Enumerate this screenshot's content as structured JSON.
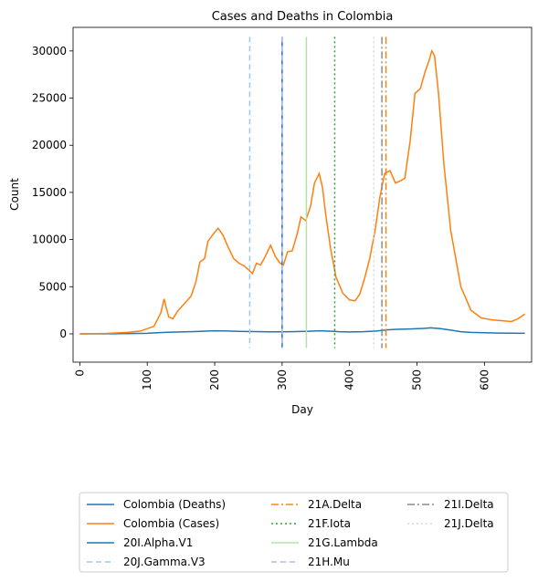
{
  "chart_data": {
    "type": "line",
    "title": "Cases and Deaths in Colombia",
    "xlabel": "Day",
    "ylabel": "Count",
    "xlim": [
      -10,
      670
    ],
    "ylim": [
      -3000,
      32500
    ],
    "xticks": [
      0,
      100,
      200,
      300,
      400,
      500,
      600
    ],
    "yticks": [
      0,
      5000,
      10000,
      15000,
      20000,
      25000,
      30000
    ],
    "grid": false,
    "legend_position": "bottom",
    "series": [
      {
        "name": "Colombia (Deaths)",
        "color": "#1f77b4",
        "x": [
          0,
          60,
          100,
          115,
          130,
          150,
          170,
          190,
          200,
          215,
          230,
          245,
          260,
          280,
          300,
          320,
          340,
          355,
          370,
          385,
          400,
          420,
          440,
          455,
          470,
          490,
          510,
          520,
          535,
          550,
          565,
          580,
          600,
          620,
          640,
          660
        ],
        "y": [
          0,
          20,
          60,
          110,
          170,
          200,
          240,
          300,
          330,
          320,
          280,
          250,
          240,
          210,
          220,
          240,
          280,
          330,
          290,
          230,
          200,
          230,
          300,
          420,
          480,
          520,
          580,
          640,
          560,
          400,
          230,
          150,
          110,
          90,
          70,
          60
        ]
      },
      {
        "name": "Colombia (Cases)",
        "color": "#ff7f0e",
        "x": [
          0,
          40,
          70,
          90,
          110,
          120,
          125,
          128,
          132,
          138,
          145,
          155,
          165,
          172,
          178,
          185,
          190,
          197,
          205,
          212,
          220,
          228,
          236,
          244,
          250,
          256,
          262,
          268,
          275,
          283,
          290,
          297,
          302,
          308,
          315,
          322,
          328,
          335,
          342,
          348,
          355,
          360,
          365,
          372,
          380,
          390,
          400,
          408,
          415,
          422,
          430,
          438,
          445,
          452,
          460,
          468,
          475,
          482,
          490,
          497,
          505,
          512,
          518,
          522,
          526,
          532,
          540,
          550,
          565,
          580,
          595,
          610,
          625,
          640,
          650,
          660
        ],
        "y": [
          0,
          50,
          150,
          300,
          800,
          2200,
          3700,
          2800,
          1800,
          1600,
          2400,
          3200,
          4000,
          5500,
          7600,
          8000,
          9800,
          10500,
          11200,
          10500,
          9200,
          8000,
          7500,
          7200,
          6800,
          6400,
          7500,
          7300,
          8200,
          9400,
          8200,
          7500,
          7300,
          8700,
          8800,
          10500,
          12400,
          12000,
          13500,
          16000,
          17000,
          15500,
          12500,
          9000,
          6000,
          4300,
          3600,
          3500,
          4200,
          5800,
          8000,
          11000,
          14500,
          17000,
          17300,
          16000,
          16200,
          16500,
          20500,
          25500,
          26000,
          27800,
          29000,
          30000,
          29500,
          25500,
          18000,
          11000,
          5000,
          2500,
          1700,
          1500,
          1400,
          1300,
          1600,
          2100
        ]
      }
    ],
    "vlines": [
      {
        "name": "20I.Alpha.V1",
        "x": 300,
        "color": "#1f77b4",
        "style": "solid"
      },
      {
        "name": "20J.Gamma.V3",
        "x": 252,
        "color": "#9ecae1",
        "style": "dashed"
      },
      {
        "name": "21A.Delta",
        "x": 454,
        "color": "#f58518",
        "style": "dashdot"
      },
      {
        "name": "21F.Iota",
        "x": 378,
        "color": "#2ca02c",
        "style": "dotted"
      },
      {
        "name": "21G.Lambda",
        "x": 336,
        "color": "#b5e0ae",
        "style": "solid"
      },
      {
        "name": "21H.Mu",
        "x": 300,
        "color": "#bcb8da",
        "style": "dashed"
      },
      {
        "name": "21I.Delta",
        "x": 448,
        "color": "#8c8c8c",
        "style": "dashdot"
      },
      {
        "name": "21J.Delta",
        "x": 436,
        "color": "#d9d9d9",
        "style": "dotted"
      }
    ],
    "vline_range": [
      -1500,
      31500
    ]
  }
}
